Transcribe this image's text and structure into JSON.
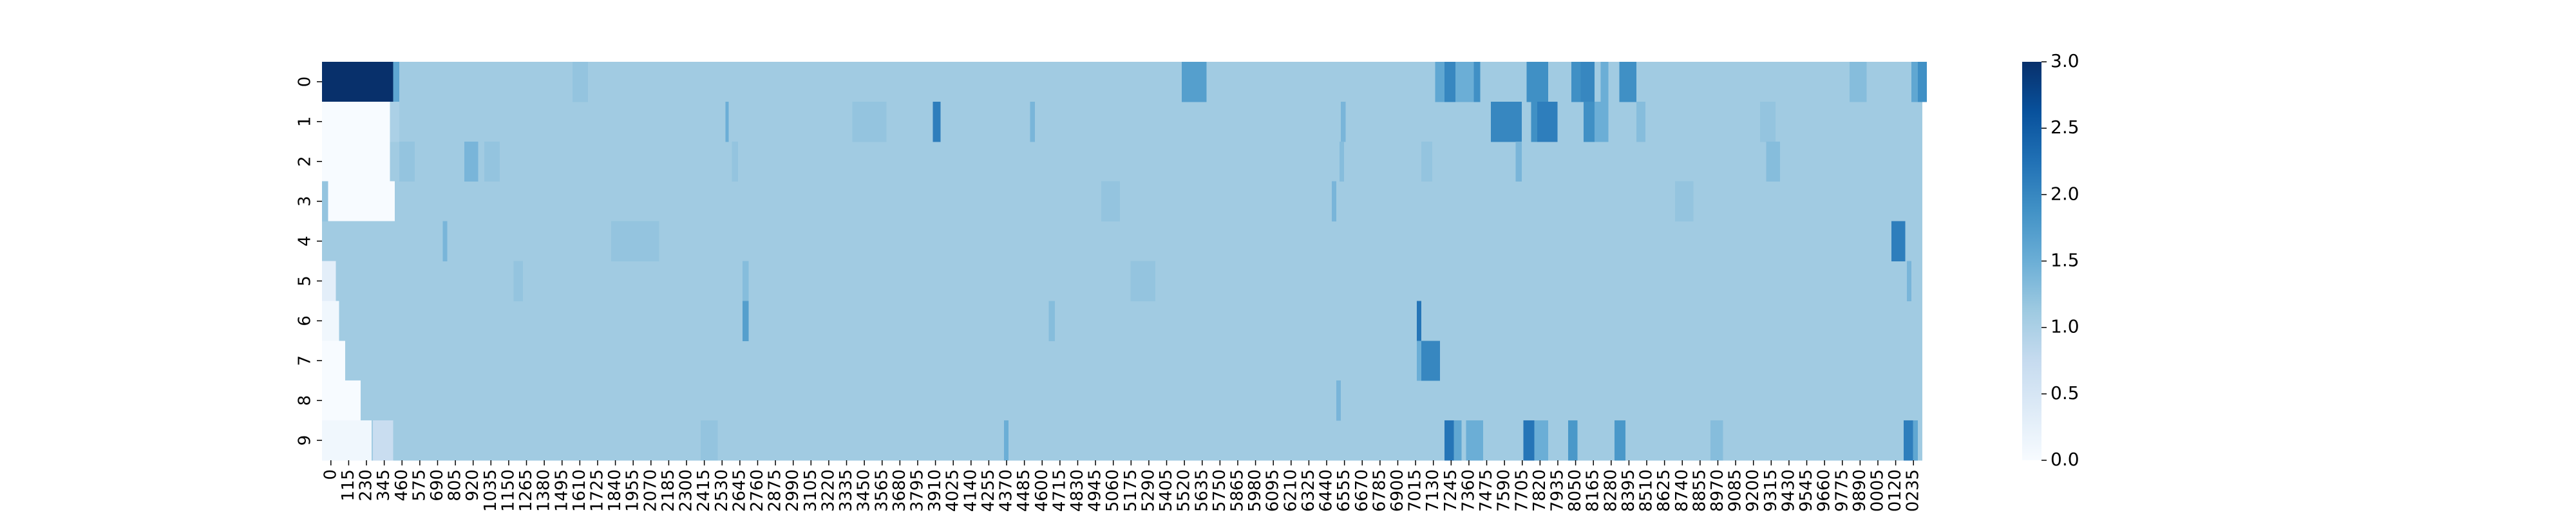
{
  "chart_data": {
    "type": "heatmap",
    "title": "",
    "xlabel": "",
    "ylabel": "",
    "colormap": "Blues",
    "vmin": 0,
    "vmax": 3,
    "rows": [
      "0",
      "1",
      "2",
      "3",
      "4",
      "5",
      "6",
      "7",
      "8",
      "9"
    ],
    "x_ticks": [
      "0",
      "115",
      "230",
      "345",
      "460",
      "575",
      "690",
      "805",
      "920",
      "1035",
      "1150",
      "1265",
      "1380",
      "1495",
      "1610",
      "1725",
      "1840",
      "1955",
      "2070",
      "2185",
      "2300",
      "2415",
      "2530",
      "2645",
      "2760",
      "2875",
      "2990",
      "3105",
      "3220",
      "3335",
      "3450",
      "3565",
      "3680",
      "3795",
      "3910",
      "4025",
      "4140",
      "4255",
      "4370",
      "4485",
      "4600",
      "4715",
      "4830",
      "4945",
      "5060",
      "5175",
      "5290",
      "5405",
      "5520",
      "5635",
      "5750",
      "5865",
      "5980",
      "6095",
      "6210",
      "6325",
      "6440",
      "6555",
      "6670",
      "6785",
      "6900",
      "7015",
      "7130",
      "7245",
      "7360",
      "7475",
      "7590",
      "7705",
      "7820",
      "7935",
      "8050",
      "8165",
      "8280",
      "8395",
      "8510",
      "8625",
      "8740",
      "8855",
      "8970",
      "9085",
      "9200",
      "9315",
      "9430",
      "9545",
      "9660",
      "9775",
      "9890",
      "0005",
      "0120",
      "0235"
    ],
    "base_value": 1.1,
    "row_start_values": [
      3.0,
      0.0,
      0.0,
      0.0,
      1.1,
      0.3,
      0.1,
      0.0,
      0.0,
      0.1
    ],
    "row_start_extent": [
      490,
      440,
      440,
      470,
      70,
      90,
      110,
      150,
      250,
      320
    ],
    "segments": [
      {
        "row": 0,
        "start": 460,
        "end": 500,
        "value": 1.6
      },
      {
        "row": 0,
        "start": 1620,
        "end": 1720,
        "value": 1.2
      },
      {
        "row": 0,
        "start": 5560,
        "end": 5720,
        "value": 1.7
      },
      {
        "row": 0,
        "start": 7200,
        "end": 7260,
        "value": 1.6
      },
      {
        "row": 0,
        "start": 7260,
        "end": 7330,
        "value": 2.0
      },
      {
        "row": 0,
        "start": 7330,
        "end": 7450,
        "value": 1.5
      },
      {
        "row": 0,
        "start": 7450,
        "end": 7490,
        "value": 1.9
      },
      {
        "row": 0,
        "start": 7790,
        "end": 7930,
        "value": 1.9
      },
      {
        "row": 0,
        "start": 8080,
        "end": 8140,
        "value": 1.9
      },
      {
        "row": 0,
        "start": 8140,
        "end": 8230,
        "value": 2.0
      },
      {
        "row": 0,
        "start": 8270,
        "end": 8320,
        "value": 1.5
      },
      {
        "row": 0,
        "start": 8390,
        "end": 8500,
        "value": 1.9
      },
      {
        "row": 0,
        "start": 9880,
        "end": 9990,
        "value": 1.3
      },
      {
        "row": 0,
        "start": 10280,
        "end": 10320,
        "value": 1.6
      },
      {
        "row": 0,
        "start": 10320,
        "end": 10380,
        "value": 1.9
      },
      {
        "row": 1,
        "start": 440,
        "end": 500,
        "value": 1.0
      },
      {
        "row": 1,
        "start": 2610,
        "end": 2630,
        "value": 1.5
      },
      {
        "row": 1,
        "start": 3430,
        "end": 3650,
        "value": 1.2
      },
      {
        "row": 1,
        "start": 3950,
        "end": 4000,
        "value": 2.1
      },
      {
        "row": 1,
        "start": 4580,
        "end": 4610,
        "value": 1.4
      },
      {
        "row": 1,
        "start": 6590,
        "end": 6620,
        "value": 1.4
      },
      {
        "row": 1,
        "start": 7560,
        "end": 7760,
        "value": 2.0
      },
      {
        "row": 1,
        "start": 7820,
        "end": 7860,
        "value": 1.9
      },
      {
        "row": 1,
        "start": 7860,
        "end": 7990,
        "value": 2.1
      },
      {
        "row": 1,
        "start": 8160,
        "end": 8230,
        "value": 1.9
      },
      {
        "row": 1,
        "start": 8230,
        "end": 8320,
        "value": 1.5
      },
      {
        "row": 1,
        "start": 8500,
        "end": 8560,
        "value": 1.3
      },
      {
        "row": 1,
        "start": 9300,
        "end": 9400,
        "value": 1.2
      },
      {
        "row": 2,
        "start": 500,
        "end": 600,
        "value": 1.2
      },
      {
        "row": 2,
        "start": 920,
        "end": 1010,
        "value": 1.4
      },
      {
        "row": 2,
        "start": 1050,
        "end": 1150,
        "value": 1.2
      },
      {
        "row": 2,
        "start": 2650,
        "end": 2690,
        "value": 1.2
      },
      {
        "row": 2,
        "start": 6580,
        "end": 6610,
        "value": 1.3
      },
      {
        "row": 2,
        "start": 7110,
        "end": 7180,
        "value": 1.2
      },
      {
        "row": 2,
        "start": 7720,
        "end": 7760,
        "value": 1.4
      },
      {
        "row": 2,
        "start": 9340,
        "end": 9430,
        "value": 1.3
      },
      {
        "row": 3,
        "start": 0,
        "end": 40,
        "value": 1.2
      },
      {
        "row": 3,
        "start": 5040,
        "end": 5160,
        "value": 1.2
      },
      {
        "row": 3,
        "start": 6530,
        "end": 6560,
        "value": 1.4
      },
      {
        "row": 3,
        "start": 8750,
        "end": 8870,
        "value": 1.2
      },
      {
        "row": 4,
        "start": 780,
        "end": 810,
        "value": 1.4
      },
      {
        "row": 4,
        "start": 1870,
        "end": 2180,
        "value": 1.2
      },
      {
        "row": 4,
        "start": 10150,
        "end": 10240,
        "value": 2.1
      },
      {
        "row": 5,
        "start": 1240,
        "end": 1300,
        "value": 1.2
      },
      {
        "row": 5,
        "start": 2720,
        "end": 2760,
        "value": 1.3
      },
      {
        "row": 5,
        "start": 5230,
        "end": 5390,
        "value": 1.2
      },
      {
        "row": 5,
        "start": 10250,
        "end": 10280,
        "value": 1.4
      },
      {
        "row": 6,
        "start": 2720,
        "end": 2760,
        "value": 1.7
      },
      {
        "row": 6,
        "start": 4700,
        "end": 4740,
        "value": 1.3
      },
      {
        "row": 6,
        "start": 7080,
        "end": 7110,
        "value": 2.2
      },
      {
        "row": 7,
        "start": 7080,
        "end": 7110,
        "value": 1.5
      },
      {
        "row": 7,
        "start": 7110,
        "end": 7230,
        "value": 2.0
      },
      {
        "row": 8,
        "start": 6560,
        "end": 6590,
        "value": 1.4
      },
      {
        "row": 9,
        "start": 330,
        "end": 460,
        "value": 0.7
      },
      {
        "row": 9,
        "start": 2450,
        "end": 2560,
        "value": 1.2
      },
      {
        "row": 9,
        "start": 4410,
        "end": 4440,
        "value": 1.5
      },
      {
        "row": 9,
        "start": 7260,
        "end": 7320,
        "value": 2.2
      },
      {
        "row": 9,
        "start": 7320,
        "end": 7370,
        "value": 1.6
      },
      {
        "row": 9,
        "start": 7400,
        "end": 7510,
        "value": 1.5
      },
      {
        "row": 9,
        "start": 7770,
        "end": 7840,
        "value": 2.2
      },
      {
        "row": 9,
        "start": 7840,
        "end": 7930,
        "value": 1.5
      },
      {
        "row": 9,
        "start": 8060,
        "end": 8120,
        "value": 1.8
      },
      {
        "row": 9,
        "start": 8360,
        "end": 8430,
        "value": 1.8
      },
      {
        "row": 9,
        "start": 8980,
        "end": 9060,
        "value": 1.3
      },
      {
        "row": 9,
        "start": 10230,
        "end": 10290,
        "value": 2.1
      },
      {
        "row": 9,
        "start": 10290,
        "end": 10320,
        "value": 1.6
      }
    ],
    "colorbar": {
      "ticks": [
        "0.0",
        "0.5",
        "1.0",
        "1.5",
        "2.0",
        "2.5",
        "3.0"
      ],
      "tick_values": [
        0,
        0.5,
        1.0,
        1.5,
        2.0,
        2.5,
        3.0
      ]
    },
    "legend": "colorbar-right",
    "grid": false
  }
}
